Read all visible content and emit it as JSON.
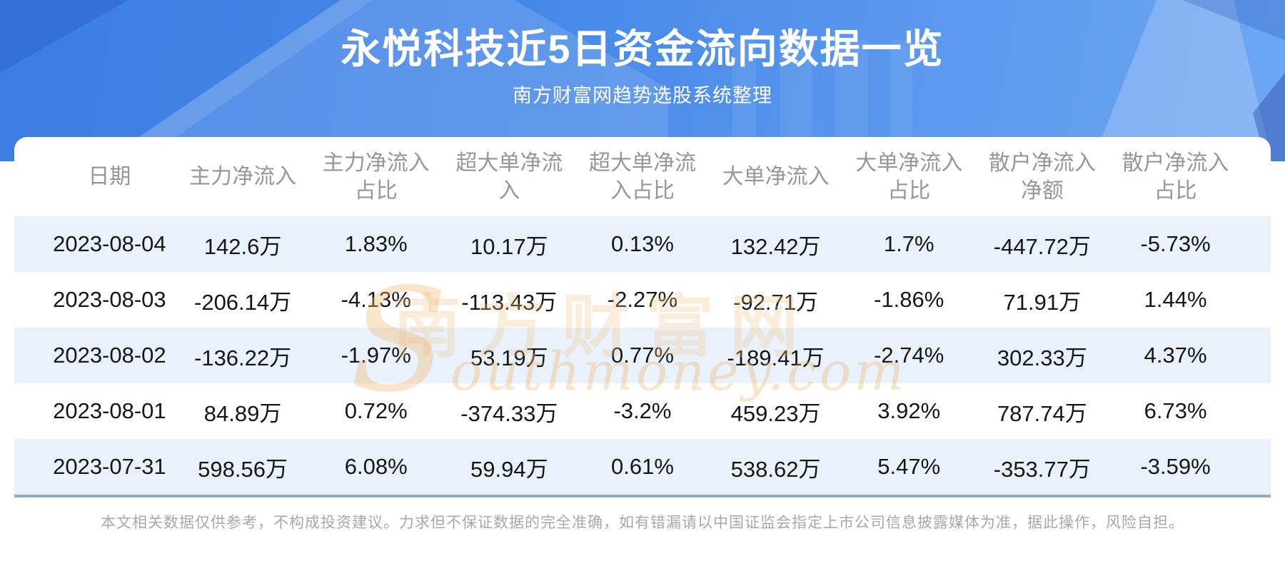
{
  "banner": {
    "title": "永悦科技近5日资金流向数据一览",
    "subtitle": "南方财富网趋势选股系统整理"
  },
  "chart_data": {
    "type": "table",
    "title": "永悦科技近5日资金流向数据一览",
    "columns": [
      "日期",
      "主力净流入",
      "主力净流入占比",
      "超大单净流入",
      "超大单净流入占比",
      "大单净流入",
      "大单净流入占比",
      "散户净流入净额",
      "散户净流入占比"
    ],
    "rows": [
      [
        "2023-08-04",
        "142.6万",
        "1.83%",
        "10.17万",
        "0.13%",
        "132.42万",
        "1.7%",
        "-447.72万",
        "-5.73%"
      ],
      [
        "2023-08-03",
        "-206.14万",
        "-4.13%",
        "-113.43万",
        "-2.27%",
        "-92.71万",
        "-1.86%",
        "71.91万",
        "1.44%"
      ],
      [
        "2023-08-02",
        "-136.22万",
        "-1.97%",
        "53.19万",
        "0.77%",
        "-189.41万",
        "-2.74%",
        "302.33万",
        "4.37%"
      ],
      [
        "2023-08-01",
        "84.89万",
        "0.72%",
        "-374.33万",
        "-3.2%",
        "459.23万",
        "3.92%",
        "787.74万",
        "6.73%"
      ],
      [
        "2023-07-31",
        "598.56万",
        "6.08%",
        "59.94万",
        "0.61%",
        "538.62万",
        "5.47%",
        "-353.77万",
        "-3.59%"
      ]
    ]
  },
  "watermark": {
    "cn": "南方财富网",
    "en": "Southmoney.com"
  },
  "footer": {
    "disclaimer": "本文相关数据仅供参考，不构成投资建议。力求但不保证数据的完全准确，如有错漏请以中国证监会指定上市公司信息披露媒体为准，据此操作，风险自担。"
  },
  "colors": {
    "banner_blue": "#4688e8",
    "row_stripe": "#e9f2fb",
    "table_bottom_border": "#92aac3",
    "header_text": "#979797",
    "data_text": "#161616",
    "watermark_orange": "#f3c98f",
    "footer_text": "#a8a8a8"
  }
}
